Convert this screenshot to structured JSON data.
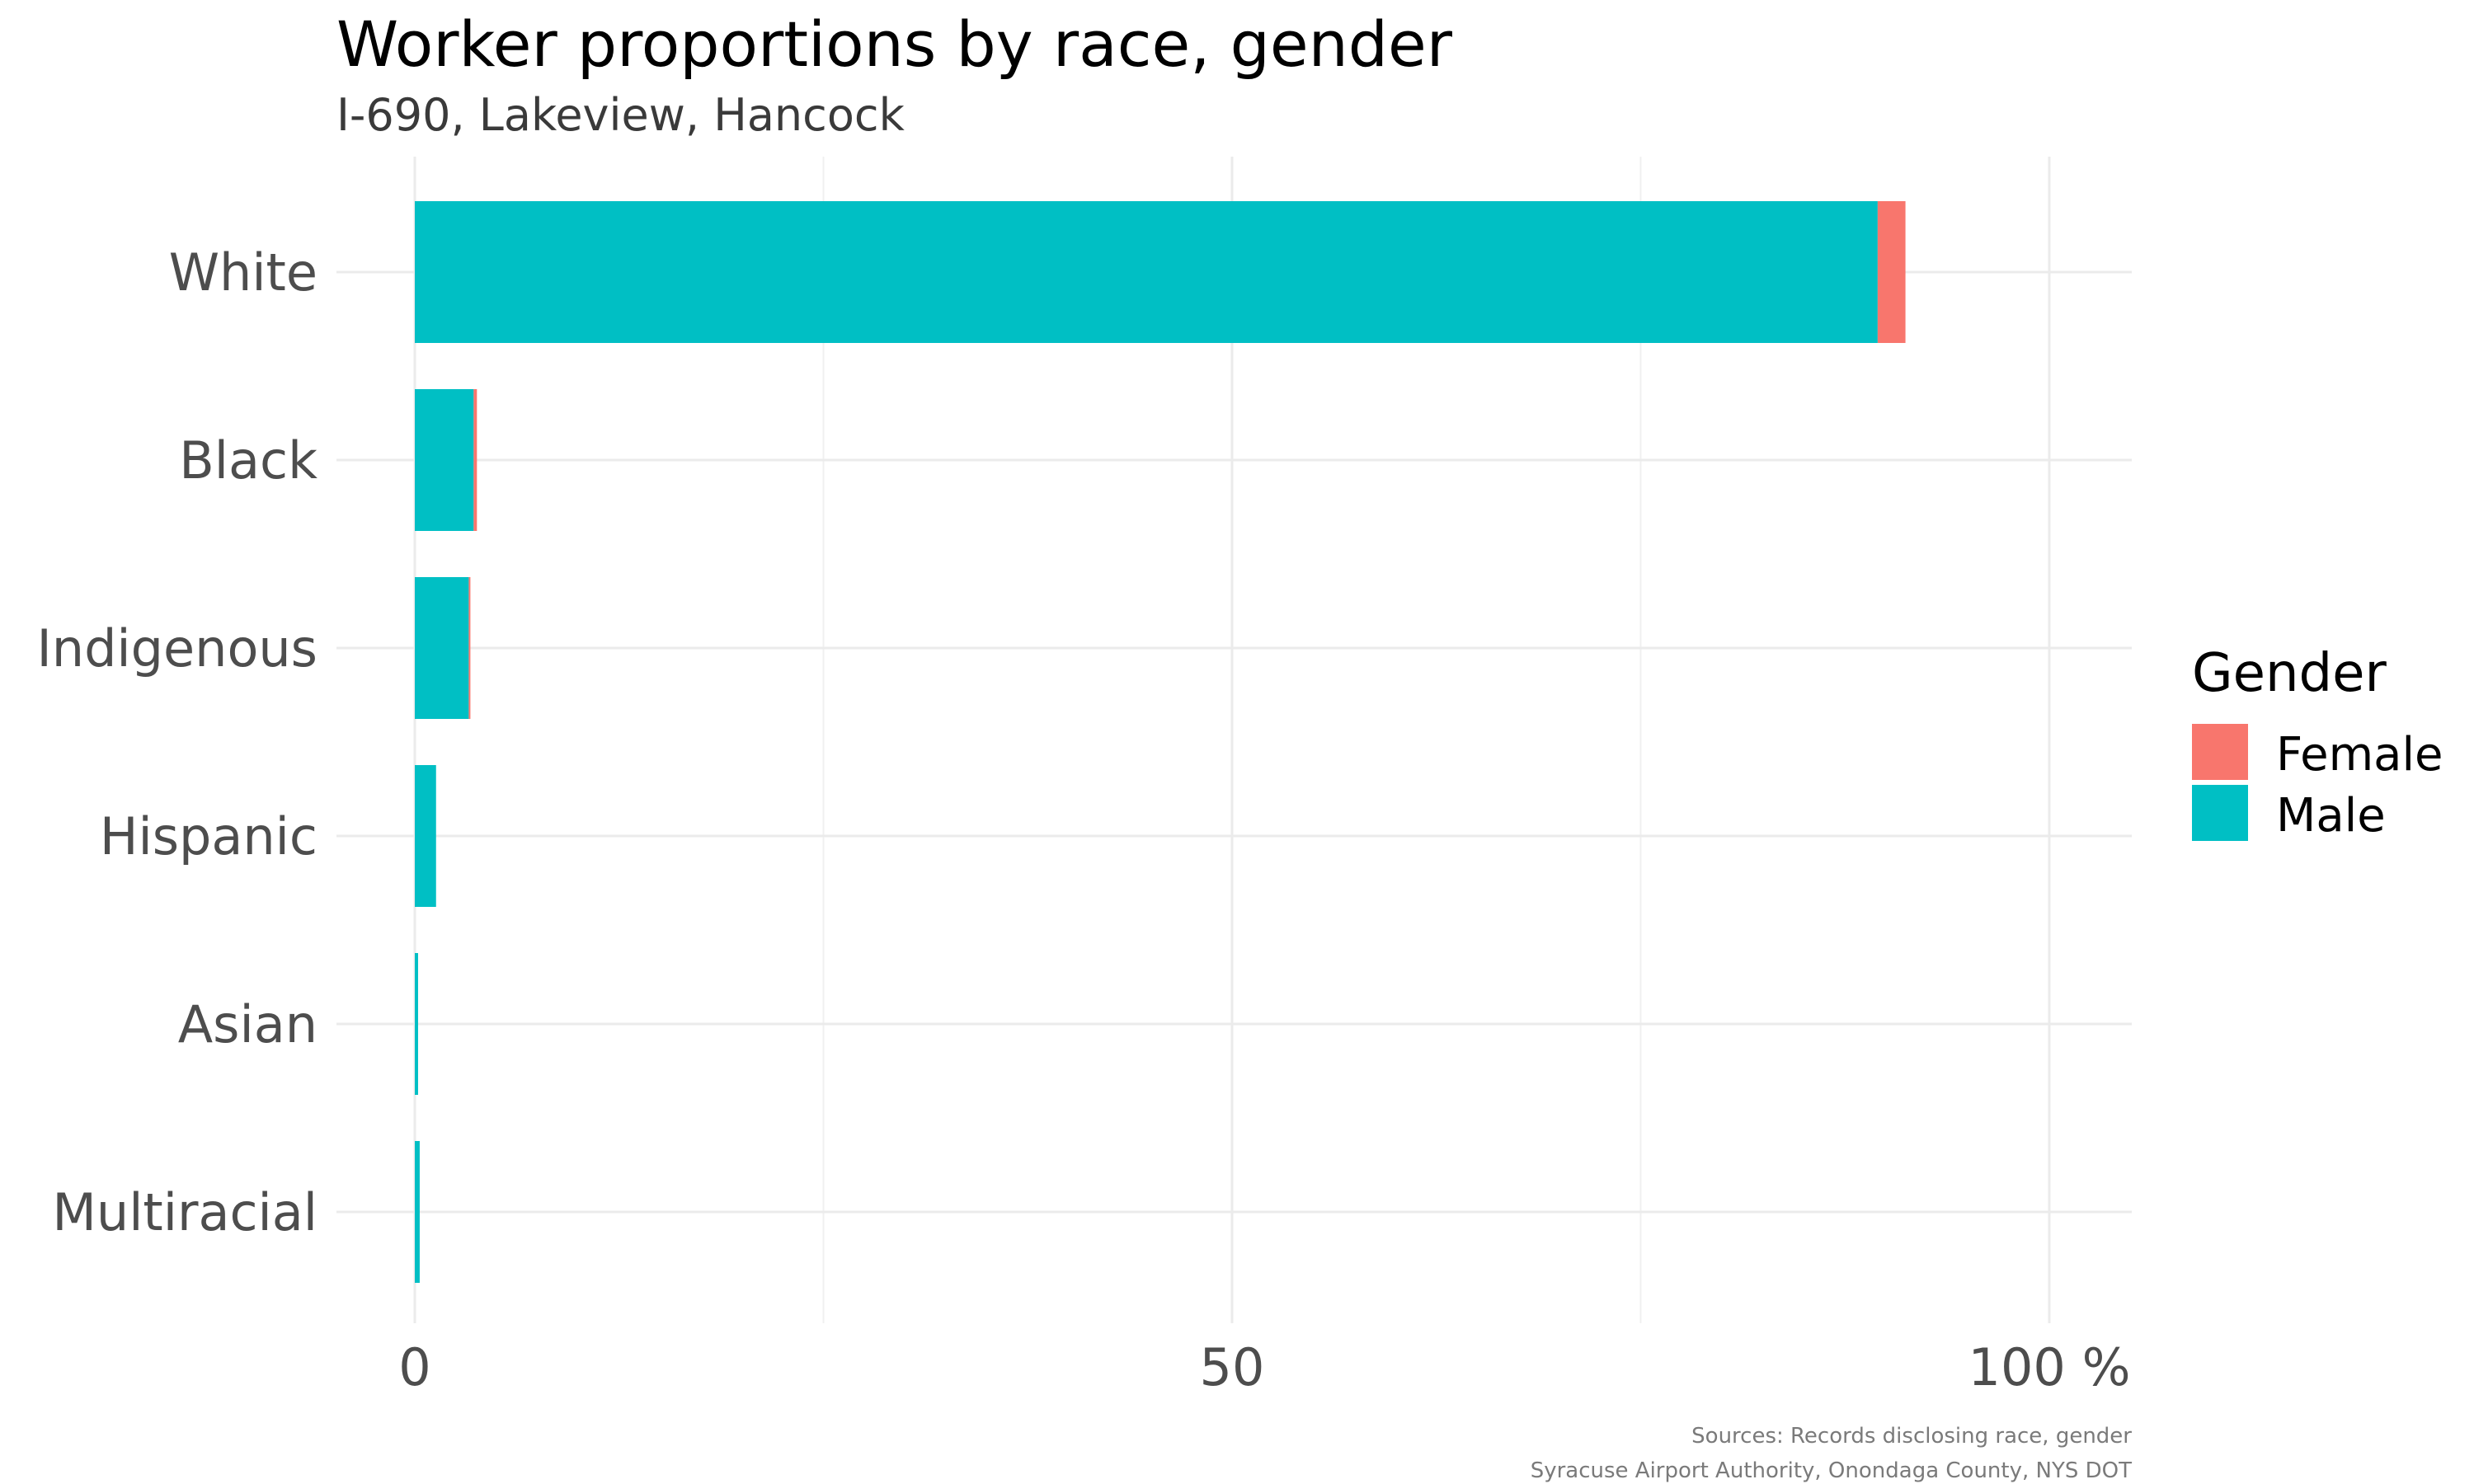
{
  "chart_data": {
    "type": "bar",
    "orientation": "horizontal",
    "stacked": true,
    "title": "Worker proportions by race, gender",
    "subtitle": "I-690, Lakeview, Hancock",
    "categories": [
      "White",
      "Black",
      "Indigenous",
      "Hispanic",
      "Asian",
      "Multiracial"
    ],
    "series": [
      {
        "name": "Male",
        "color": "#00BFC4",
        "values": [
          89.5,
          3.6,
          3.3,
          1.3,
          0.2,
          0.3
        ]
      },
      {
        "name": "Female",
        "color": "#F8766D",
        "values": [
          1.7,
          0.2,
          0.1,
          0.0,
          0.0,
          0.0
        ]
      }
    ],
    "x_ticks": [
      {
        "value": 0,
        "label": "0"
      },
      {
        "value": 50,
        "label": "50"
      },
      {
        "value": 100,
        "label": "100 %"
      }
    ],
    "xlim": [
      -4.8,
      105
    ],
    "grid": true,
    "legend": {
      "title": "Gender",
      "position": "right",
      "items": [
        {
          "label": "Female",
          "color": "#F8766D"
        },
        {
          "label": "Male",
          "color": "#00BFC4"
        }
      ]
    },
    "caption": [
      "Sources: Records disclosing race, gender",
      "Syracuse Airport Authority, Onondaga County, NYS DOT"
    ]
  }
}
